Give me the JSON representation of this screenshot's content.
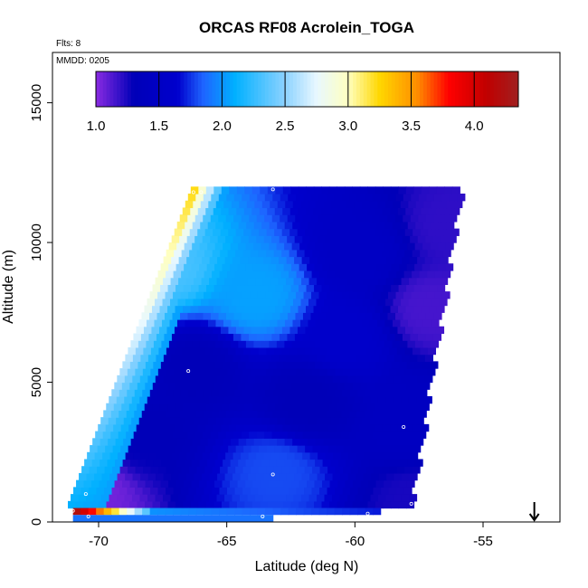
{
  "chart_data": {
    "type": "heatmap",
    "title": "ORCAS RF08 Acrolein_TOGA",
    "annotation_flts": "Flts: 8",
    "annotation_mmdd": "MMDD: 0205",
    "xlabel": "Latitude (deg N)",
    "ylabel": "Altitude (m)",
    "xlim": [
      -71.8,
      -52.0
    ],
    "ylim": [
      0,
      16800
    ],
    "x_ticks": [
      -70,
      -65,
      -60,
      -55
    ],
    "y_ticks": [
      0,
      5000,
      10000,
      15000
    ],
    "x_tick_labels": [
      "-70",
      "-65",
      "-60",
      "-55"
    ],
    "y_tick_labels": [
      "0",
      "5000",
      "10000",
      "15000"
    ],
    "colorbar": {
      "range": [
        1.0,
        4.35
      ],
      "ticks": [
        1.0,
        1.5,
        2.0,
        2.5,
        3.0,
        3.5,
        4.0
      ],
      "tick_labels": [
        "1.0",
        "1.5",
        "2.0",
        "2.5",
        "3.0",
        "3.5",
        "4.0"
      ],
      "colors": [
        "#8a2be2",
        "#0000b8",
        "#0000c8",
        "#1e90ff",
        "#00b0ff",
        "#e8f8ff",
        "#ffffc0",
        "#ffd700",
        "#ff8c00",
        "#ff0000",
        "#c00000",
        "#a02020"
      ]
    },
    "marker": {
      "label": "arrow",
      "x": -53.0
    },
    "sample_points": [
      {
        "lat": -66.5,
        "alt": 5400
      },
      {
        "lat": -58.1,
        "alt": 3400
      },
      {
        "lat": -63.2,
        "alt": 1700
      },
      {
        "lat": -70.5,
        "alt": 1000
      },
      {
        "lat": -57.8,
        "alt": 650
      },
      {
        "lat": -71.0,
        "alt": 400
      },
      {
        "lat": -63.6,
        "alt": 200
      },
      {
        "lat": -59.5,
        "alt": 300
      },
      {
        "lat": -70.4,
        "alt": 200
      },
      {
        "lat": -66.0,
        "alt": 11800
      },
      {
        "lat": -66.3,
        "alt": 11800
      },
      {
        "lat": -63.2,
        "alt": 11900
      },
      {
        "lat": -55.8,
        "alt": 12200
      }
    ]
  }
}
